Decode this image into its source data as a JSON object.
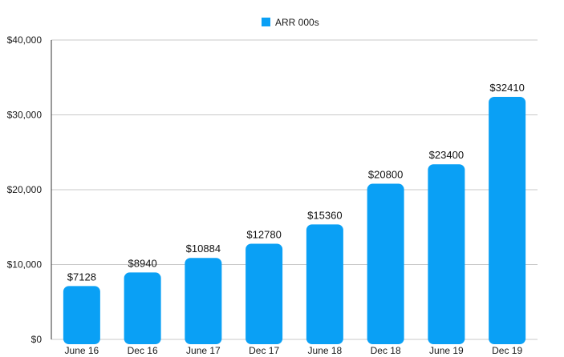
{
  "chart_data": {
    "type": "bar",
    "title": "",
    "xlabel": "",
    "ylabel": "",
    "categories": [
      "June 16",
      "Dec 16",
      "June 17",
      "Dec 17",
      "June 18",
      "Dec 18",
      "June 19",
      "Dec 19"
    ],
    "series": [
      {
        "name": "ARR 000s",
        "values": [
          7128,
          8940,
          10884,
          12780,
          15360,
          20800,
          23400,
          32410
        ],
        "data_labels": [
          "$7128",
          "$8940",
          "$10884",
          "$12780",
          "$15360",
          "$20800",
          "$23400",
          "$32410"
        ]
      }
    ],
    "ylim": [
      0,
      40000
    ],
    "yticks": [
      0,
      10000,
      20000,
      30000,
      40000
    ],
    "ytick_labels": [
      "$0",
      "$10,000",
      "$20,000",
      "$30,000",
      "$40,000"
    ],
    "legend": {
      "position": "top-center",
      "label": "ARR 000s"
    },
    "grid": true,
    "colors": {
      "bar": "#0aa0f5",
      "grid": "#c8c8c8",
      "axis": "#333333"
    }
  }
}
